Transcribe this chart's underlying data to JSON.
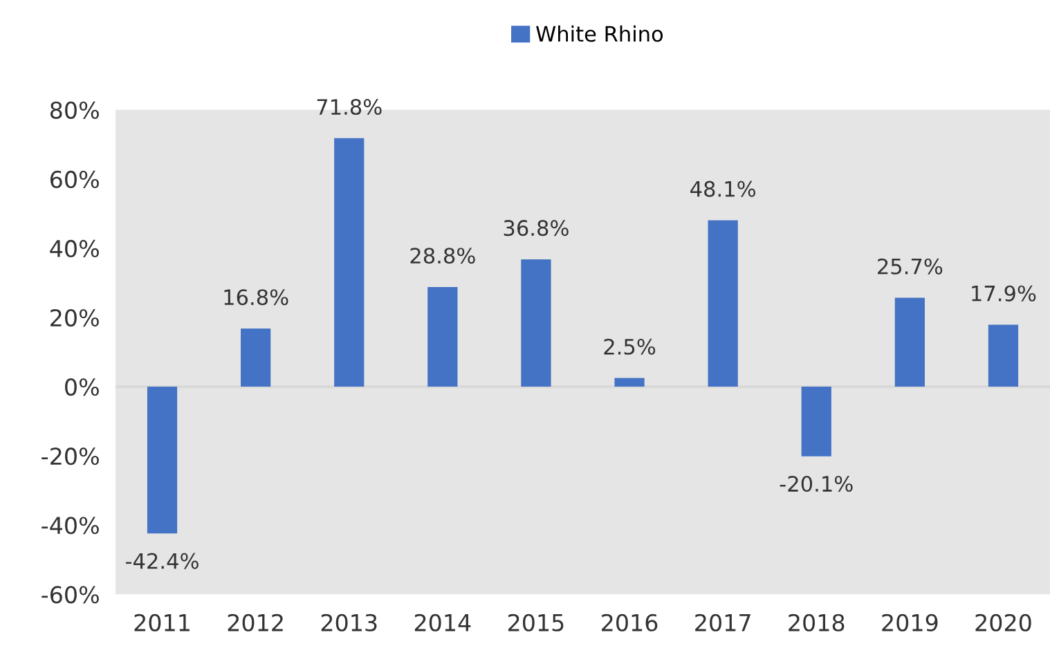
{
  "chart_data": {
    "type": "bar",
    "categories": [
      "2011",
      "2012",
      "2013",
      "2014",
      "2015",
      "2016",
      "2017",
      "2018",
      "2019",
      "2020"
    ],
    "series": [
      {
        "name": "White Rhino",
        "color": "#4472c4",
        "values": [
          -42.4,
          16.8,
          71.8,
          28.8,
          36.8,
          2.5,
          48.1,
          -20.1,
          25.7,
          17.9
        ],
        "value_labels": [
          "-42.4%",
          "16.8%",
          "71.8%",
          "28.8%",
          "36.8%",
          "2.5%",
          "48.1%",
          "-20.1%",
          "25.7%",
          "17.9%"
        ]
      }
    ],
    "ylim": [
      -60,
      80
    ],
    "yticks": [
      {
        "value": -60,
        "label": "-60%"
      },
      {
        "value": -40,
        "label": "-40%"
      },
      {
        "value": -20,
        "label": "-20%"
      },
      {
        "value": 0,
        "label": "0%"
      },
      {
        "value": 20,
        "label": "20%"
      },
      {
        "value": 40,
        "label": "40%"
      },
      {
        "value": 60,
        "label": "60%"
      },
      {
        "value": 80,
        "label": "80%"
      }
    ],
    "ref_lines": [
      {
        "axis": "y",
        "value": 0,
        "color": "#d9d9d9"
      }
    ],
    "legend": "top",
    "grid": false
  }
}
